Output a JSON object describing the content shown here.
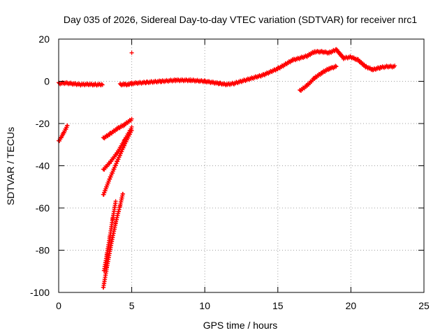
{
  "chart_data": {
    "type": "scatter",
    "title": "Day 035 of 2026, Sidereal Day-to-day VTEC variation (SDTVAR) for receiver nrc1",
    "xlabel": "GPS time / hours",
    "ylabel": "SDTVAR / TECUs",
    "xlim": [
      0,
      25
    ],
    "ylim": [
      -100,
      20
    ],
    "xticks": [
      0,
      5,
      10,
      15,
      20,
      25
    ],
    "yticks": [
      -100,
      -80,
      -60,
      -40,
      -20,
      0,
      20
    ],
    "grid": true,
    "legend": "none",
    "marker": "+",
    "color": "#ff0000",
    "segments": [
      {
        "x": [
          0.0,
          0.5,
          1.0,
          1.5,
          2.0,
          2.5,
          3.0
        ],
        "y": [
          -1.0,
          -0.8,
          -1.2,
          -1.5,
          -1.4,
          -1.6,
          -1.5
        ]
      },
      {
        "x": [
          0.0,
          0.3,
          0.6
        ],
        "y": [
          -28.5,
          -25.0,
          -21.0
        ]
      },
      {
        "x": [
          3.05,
          3.5,
          4.0,
          4.5,
          5.0
        ],
        "y": [
          -27.0,
          -25.0,
          -22.5,
          -20.5,
          -18.0
        ]
      },
      {
        "x": [
          3.05,
          3.5,
          4.0,
          4.5,
          5.0
        ],
        "y": [
          -42.0,
          -38.5,
          -34.0,
          -28.0,
          -22.0
        ]
      },
      {
        "x": [
          3.05,
          3.5,
          4.0,
          4.5,
          5.0
        ],
        "y": [
          -54.0,
          -46.0,
          -38.0,
          -30.0,
          -23.0
        ]
      },
      {
        "x": [
          3.05,
          3.3,
          3.6,
          3.9,
          4.2,
          4.4
        ],
        "y": [
          -98.0,
          -88.0,
          -77.0,
          -67.0,
          -59.0,
          -53.0
        ]
      },
      {
        "x": [
          3.1,
          3.3,
          3.5,
          3.7,
          3.9
        ],
        "y": [
          -90.0,
          -82.0,
          -74.0,
          -65.0,
          -57.0
        ]
      },
      {
        "x": [
          4.2,
          4.5,
          4.8,
          5.0
        ],
        "y": [
          -1.5,
          -1.5,
          -1.5,
          -1.0
        ]
      },
      {
        "x": [
          5.0
        ],
        "y": [
          13.5
        ]
      },
      {
        "x": [
          5.0,
          6.0,
          7.0,
          8.0,
          9.0,
          10.0,
          11.0,
          11.5,
          12.0,
          13.0,
          14.0,
          15.0,
          16.0,
          17.0,
          17.5,
          18.0,
          18.5,
          19.0,
          19.5,
          20.0,
          20.5,
          21.0,
          21.5,
          22.0,
          22.5,
          23.0
        ],
        "y": [
          -1.0,
          -0.5,
          0.0,
          0.5,
          0.5,
          0.0,
          -1.0,
          -1.5,
          -1.0,
          1.0,
          3.0,
          6.0,
          10.0,
          12.0,
          14.0,
          14.0,
          13.5,
          15.0,
          11.0,
          11.5,
          10.0,
          7.0,
          5.5,
          6.5,
          7.0,
          7.0
        ]
      },
      {
        "x": [
          16.5,
          17.0,
          17.5,
          18.0,
          18.5,
          19.0
        ],
        "y": [
          -4.5,
          -2.0,
          1.5,
          4.0,
          6.0,
          7.0
        ]
      }
    ]
  }
}
